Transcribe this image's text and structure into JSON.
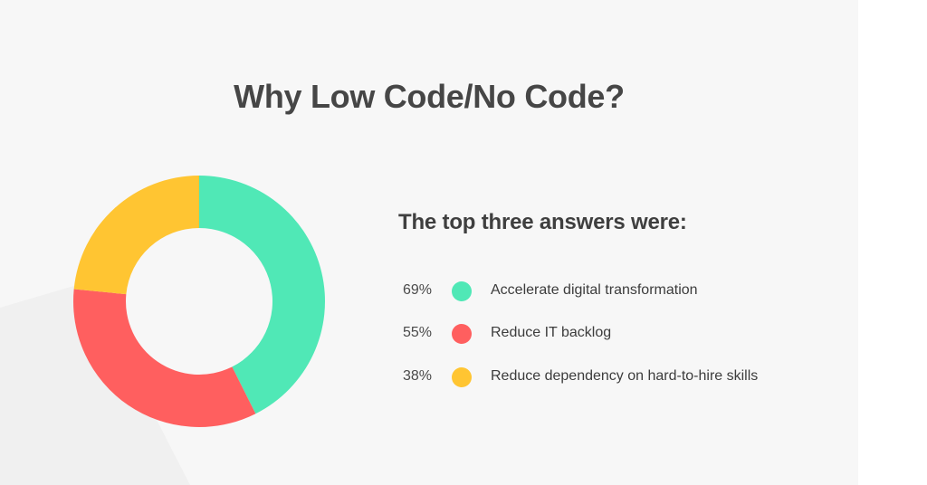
{
  "title": "Why Low Code/No Code?",
  "subtitle": "The top three answers were:",
  "chart_data": {
    "type": "pie",
    "style": "donut",
    "title": "Why Low Code/No Code?",
    "categories": [
      "Accelerate digital transformation",
      "Reduce IT backlog",
      "Reduce dependency on hard-to-hire skills"
    ],
    "values": [
      69,
      55,
      38
    ],
    "value_labels": [
      "69%",
      "55%",
      "38%"
    ],
    "colors": [
      "#50e8b6",
      "#ff5f5f",
      "#ffc532"
    ],
    "legend_position": "right"
  }
}
